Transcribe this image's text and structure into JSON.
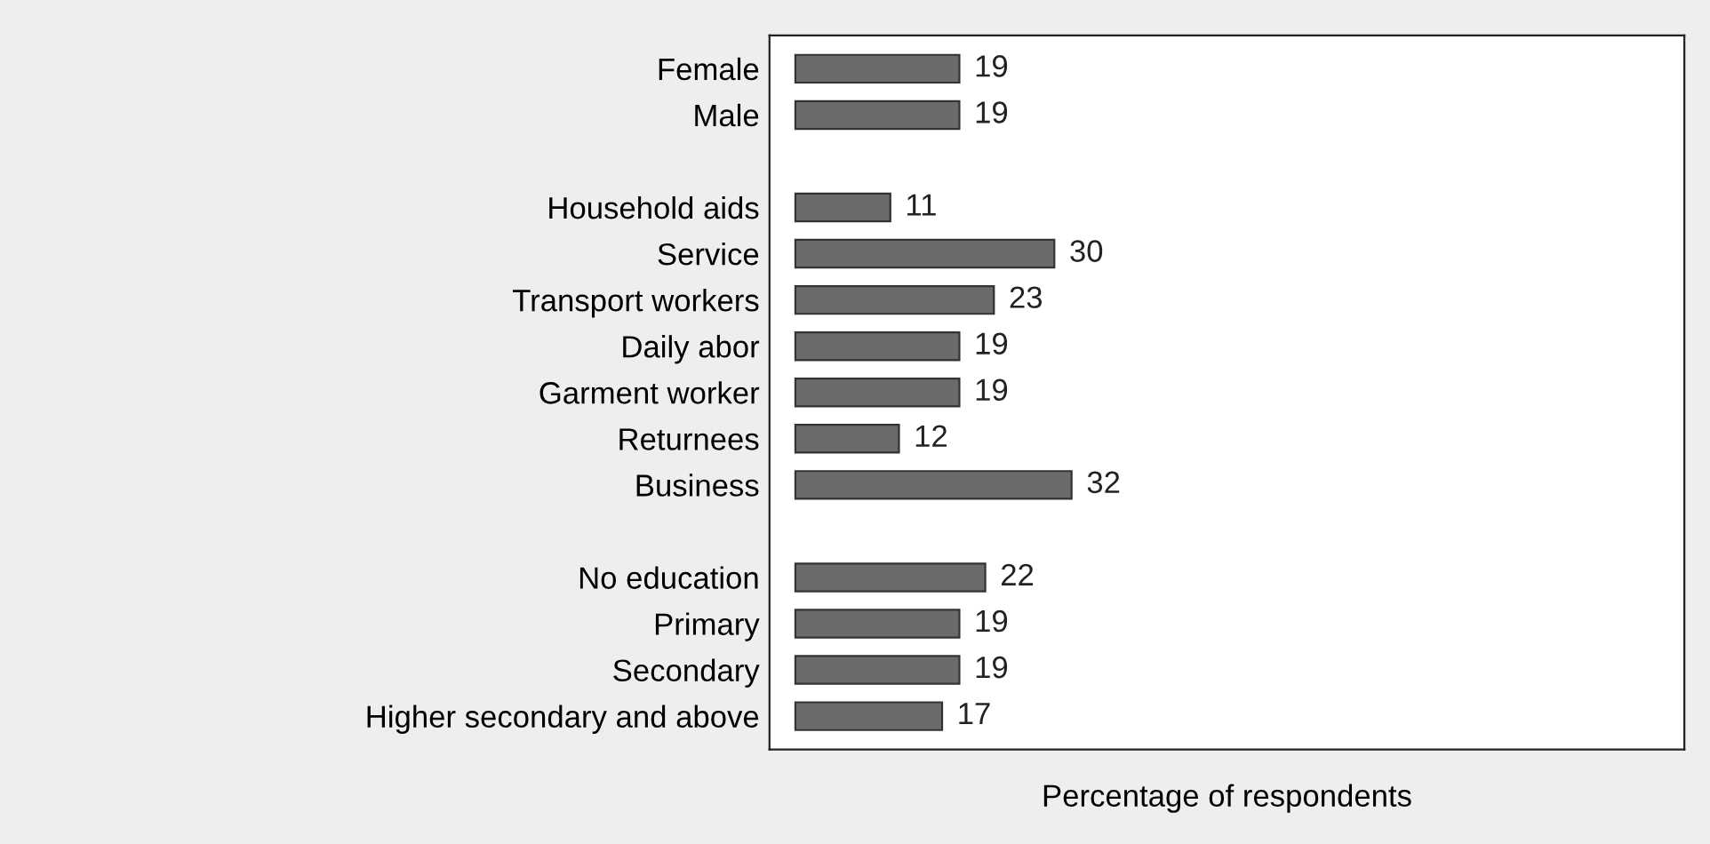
{
  "chart_data": {
    "type": "bar",
    "orientation": "horizontal",
    "xlabel": "Percentage of respondents",
    "categories": [
      "Female",
      "Male",
      null,
      "Household aids",
      "Service",
      "Transport workers",
      "Daily abor",
      "Garment worker",
      "Returnees",
      "Business",
      null,
      "No education",
      "Primary",
      "Secondary",
      "Higher secondary and above"
    ],
    "values": [
      19,
      19,
      null,
      11,
      30,
      23,
      19,
      19,
      12,
      32,
      null,
      22,
      19,
      19,
      17
    ],
    "color": "#6b6b6b",
    "xlim": [
      -3,
      103
    ],
    "data_labels": true,
    "tick_labels": "y",
    "grid": false,
    "legend": false
  }
}
